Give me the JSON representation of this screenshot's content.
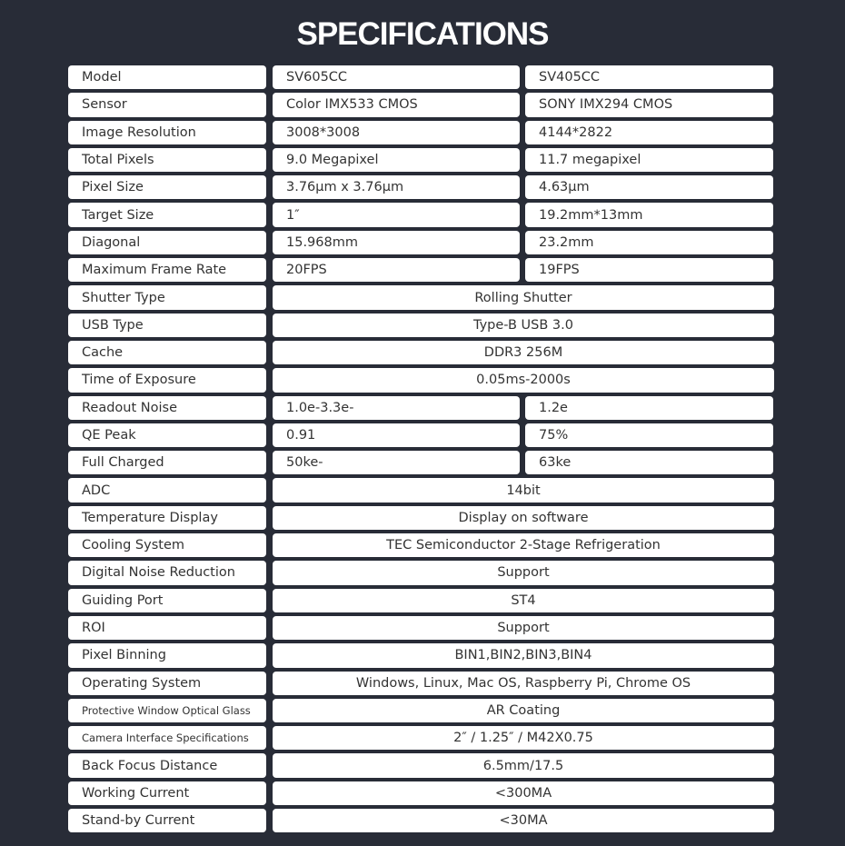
{
  "title": "SPECIFICATIONS",
  "rows": [
    {
      "label": "Model",
      "values": [
        "SV605CC",
        "SV405CC"
      ]
    },
    {
      "label": "Sensor",
      "values": [
        "Color IMX533 CMOS",
        "SONY IMX294 CMOS"
      ]
    },
    {
      "label": "Image Resolution",
      "values": [
        "3008*3008",
        "4144*2822"
      ]
    },
    {
      "label": "Total Pixels",
      "values": [
        "9.0 Megapixel",
        "11.7 megapixel"
      ]
    },
    {
      "label": "Pixel Size",
      "values": [
        "3.76µm x 3.76µm",
        "4.63µm"
      ]
    },
    {
      "label": "Target Size",
      "values": [
        "1″",
        "19.2mm*13mm"
      ]
    },
    {
      "label": "Diagonal",
      "values": [
        "15.968mm",
        "23.2mm"
      ]
    },
    {
      "label": "Maximum Frame Rate",
      "values": [
        "20FPS",
        "19FPS"
      ]
    },
    {
      "label": "Shutter Type",
      "values": [
        "Rolling Shutter"
      ]
    },
    {
      "label": "USB Type",
      "values": [
        "Type-B USB 3.0"
      ]
    },
    {
      "label": "Cache",
      "values": [
        "DDR3 256M"
      ]
    },
    {
      "label": "Time of Exposure",
      "values": [
        "0.05ms-2000s"
      ]
    },
    {
      "label": "Readout Noise",
      "values": [
        "1.0e-3.3e-",
        "1.2e"
      ]
    },
    {
      "label": "QE Peak",
      "values": [
        "0.91",
        "75%"
      ]
    },
    {
      "label": "Full Charged",
      "values": [
        "50ke-",
        "63ke"
      ]
    },
    {
      "label": "ADC",
      "values": [
        "14bit"
      ]
    },
    {
      "label": "Temperature Display",
      "values": [
        "Display on software"
      ]
    },
    {
      "label": "Cooling System",
      "values": [
        "TEC Semiconductor 2-Stage Refrigeration"
      ]
    },
    {
      "label": "Digital Noise Reduction",
      "values": [
        "Support"
      ]
    },
    {
      "label": "Guiding Port",
      "values": [
        "ST4"
      ]
    },
    {
      "label": "ROI",
      "values": [
        "Support"
      ]
    },
    {
      "label": "Pixel Binning",
      "values": [
        "BIN1,BIN2,BIN3,BIN4"
      ]
    },
    {
      "label": "Operating System",
      "values": [
        "Windows, Linux, Mac OS, Raspberry Pi, Chrome OS"
      ]
    },
    {
      "label": "Protective Window Optical Glass",
      "values": [
        "AR Coating"
      ]
    },
    {
      "label": "Camera Interface Specifications",
      "values": [
        "2″ / 1.25″ / M42X0.75"
      ]
    },
    {
      "label": "Back Focus Distance",
      "values": [
        "6.5mm/17.5"
      ]
    },
    {
      "label": "Working Current",
      "values": [
        "<300MA"
      ]
    },
    {
      "label": "Stand-by Current",
      "values": [
        "<30MA"
      ]
    }
  ]
}
